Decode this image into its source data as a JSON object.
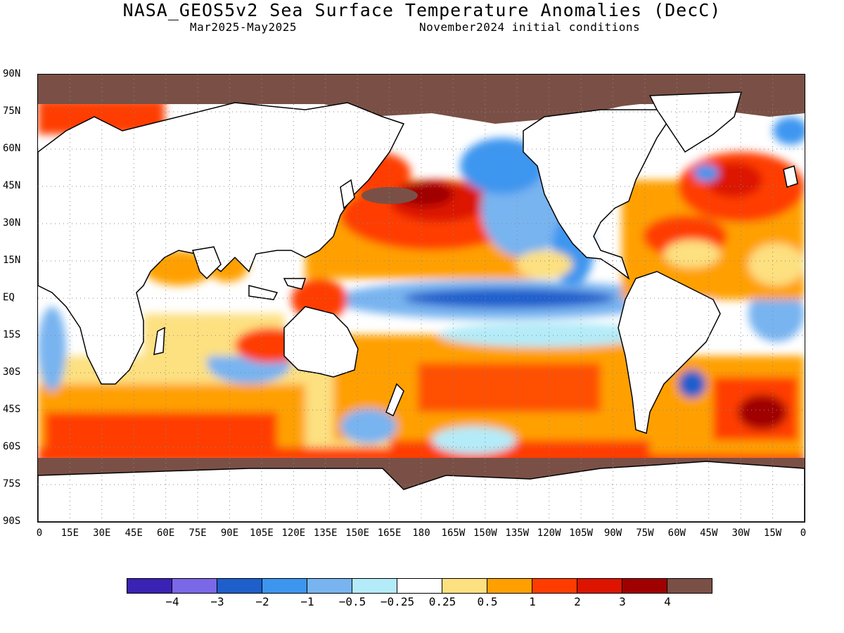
{
  "title": "NASA_GEOS5v2 Sea Surface Temperature Anomalies (DecC)",
  "subtitle_left": "Mar2025-May2025",
  "subtitle_right": "November2024 initial conditions",
  "lat_labels": [
    "90N",
    "75N",
    "60N",
    "45N",
    "30N",
    "15N",
    "EQ",
    "15S",
    "30S",
    "45S",
    "60S",
    "75S",
    "90S"
  ],
  "lon_labels": [
    "0",
    "15E",
    "30E",
    "45E",
    "60E",
    "75E",
    "90E",
    "105E",
    "120E",
    "135E",
    "150E",
    "165E",
    "180",
    "165W",
    "150W",
    "135W",
    "120W",
    "105W",
    "90W",
    "75W",
    "60W",
    "45W",
    "30W",
    "15W",
    "0"
  ],
  "colorbar": {
    "colors": [
      "#3a22b4",
      "#7a68e8",
      "#1e5fcc",
      "#3c96f0",
      "#78b4f0",
      "#b4ebf8",
      "#ffffff",
      "#fde080",
      "#ffa000",
      "#ff3c00",
      "#dc1400",
      "#a00000",
      "#7a5046"
    ],
    "labels": [
      "-4",
      "-3",
      "-2",
      "-1",
      "-0.5",
      "-0.25",
      "0.25",
      "0.5",
      "1",
      "2",
      "3",
      "4"
    ]
  },
  "land_color": "#ffffff",
  "ice_color": "#7a5046"
}
